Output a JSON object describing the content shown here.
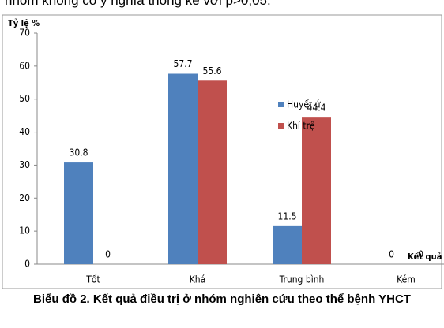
{
  "document": {
    "top_text": "nhóm không có ý nghĩa thống kê với p>0,05.",
    "caption": "Biểu đồ 2. Kết quả điều trị ở nhóm nghiên cứu theo thể bệnh YHCT"
  },
  "chart_data": {
    "type": "bar",
    "y_label": "Tỷ lệ %",
    "x_label": "Kết quả",
    "categories": [
      "Tốt",
      "Khá",
      "Trung bình",
      "Kém"
    ],
    "series": [
      {
        "name": "Huyết ứ",
        "color": "#4f81bd",
        "values": [
          30.8,
          57.7,
          11.5,
          0
        ]
      },
      {
        "name": "Khí trệ",
        "color": "#c0504d",
        "values": [
          0,
          55.6,
          44.4,
          0
        ]
      }
    ],
    "ylim": [
      0,
      70
    ],
    "yticks": [
      0,
      10,
      20,
      30,
      40,
      50,
      60,
      70
    ],
    "grid": false,
    "legend": "right"
  }
}
